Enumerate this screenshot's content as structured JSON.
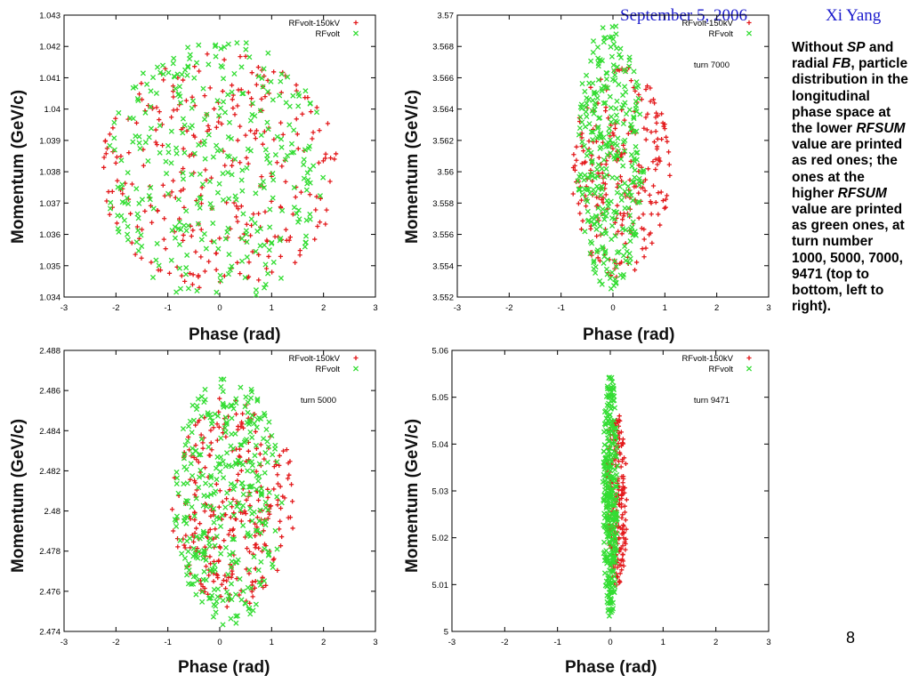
{
  "header": {
    "date": "September 5, 2006",
    "author": "Xi Yang"
  },
  "description": {
    "segments": [
      {
        "text": "Without ",
        "italic": false
      },
      {
        "text": "SP",
        "italic": true
      },
      {
        "text": " and radial ",
        "italic": false
      },
      {
        "text": "FB",
        "italic": true
      },
      {
        "text": ", particle distribution in the longitudinal phase space at the lower ",
        "italic": false
      },
      {
        "text": "RFSUM",
        "italic": true
      },
      {
        "text": " value are printed as red ones; the ones at the higher ",
        "italic": false
      },
      {
        "text": "RFSUM",
        "italic": true
      },
      {
        "text": " value are printed as green ones, at turn number 1000, 5000, 7000, 9471 (top to bottom, left to right).",
        "italic": false
      }
    ]
  },
  "page_number": "8",
  "colors": {
    "red_series": "#e31a1c",
    "green_series": "#33dd33",
    "header_text": "#1a1acc"
  },
  "chart_data": [
    {
      "type": "scatter",
      "title": "",
      "xlabel": "Phase (rad)",
      "ylabel": "Momentum (GeV/c)",
      "annotation": "",
      "xlim": [
        -3,
        3
      ],
      "ylim": [
        1.034,
        1.043
      ],
      "xticks": [
        "-3",
        "-2",
        "-1",
        "0",
        "1",
        "2",
        "3"
      ],
      "yticks": [
        "1.034",
        "1.035",
        "1.036",
        "1.037",
        "1.038",
        "1.039",
        "1.04",
        "1.041",
        "1.042",
        "1.043"
      ],
      "legend": {
        "position": "top-right"
      },
      "series": [
        {
          "name": "RFvolt-150kV",
          "marker": "+",
          "color": "#e31a1c",
          "distribution": {
            "center": [
              0.0,
              1.038
            ],
            "semi_axes": [
              2.3,
              0.0038
            ],
            "count": 300
          }
        },
        {
          "name": "RFvolt",
          "marker": "x",
          "color": "#33dd33",
          "distribution": {
            "center": [
              -0.05,
              1.038
            ],
            "semi_axes": [
              2.15,
              0.0043
            ],
            "count": 340
          }
        }
      ]
    },
    {
      "type": "scatter",
      "title": "",
      "xlabel": "Phase (rad)",
      "ylabel": "Momentum (GeV/c)",
      "annotation": "turn 7000",
      "xlim": [
        -3,
        3
      ],
      "ylim": [
        3.552,
        3.57
      ],
      "xticks": [
        "-3",
        "-2",
        "-1",
        "0",
        "1",
        "2",
        "3"
      ],
      "yticks": [
        "3.552",
        "3.554",
        "3.556",
        "3.558",
        "3.56",
        "3.562",
        "3.564",
        "3.566",
        "3.568",
        "3.57"
      ],
      "legend": {
        "position": "top-right"
      },
      "series": [
        {
          "name": "RFvolt-150kV",
          "marker": "+",
          "color": "#e31a1c",
          "distribution": {
            "center": [
              0.15,
              3.56
            ],
            "semi_axes": [
              0.95,
              0.0068
            ],
            "count": 260
          }
        },
        {
          "name": "RFvolt",
          "marker": "x",
          "color": "#33dd33",
          "distribution": {
            "center": [
              -0.05,
              3.561
            ],
            "semi_axes": [
              0.65,
              0.0085
            ],
            "count": 320
          }
        }
      ]
    },
    {
      "type": "scatter",
      "title": "",
      "xlabel": "Phase (rad)",
      "ylabel": "Momentum (GeV/c)",
      "annotation": "turn 5000",
      "xlim": [
        -3,
        3
      ],
      "ylim": [
        2.474,
        2.488
      ],
      "xticks": [
        "-3",
        "-2",
        "-1",
        "0",
        "1",
        "2",
        "3"
      ],
      "yticks": [
        "2.474",
        "2.476",
        "2.478",
        "2.48",
        "2.482",
        "2.484",
        "2.486",
        "2.488"
      ],
      "legend": {
        "position": "top-right"
      },
      "series": [
        {
          "name": "RFvolt-150kV",
          "marker": "+",
          "color": "#e31a1c",
          "distribution": {
            "center": [
              0.25,
              2.4805
            ],
            "semi_axes": [
              1.2,
              0.0053
            ],
            "count": 300
          }
        },
        {
          "name": "RFvolt",
          "marker": "x",
          "color": "#33dd33",
          "distribution": {
            "center": [
              0.15,
              2.4805
            ],
            "semi_axes": [
              1.05,
              0.0062
            ],
            "count": 340
          }
        }
      ]
    },
    {
      "type": "scatter",
      "title": "",
      "xlabel": "Phase (rad)",
      "ylabel": "Momentum (GeV/c)",
      "annotation": "turn 9471",
      "xlim": [
        -3,
        3
      ],
      "ylim": [
        5,
        5.06
      ],
      "xticks": [
        "-3",
        "-2",
        "-1",
        "0",
        "1",
        "2",
        "3"
      ],
      "yticks": [
        "5",
        "5.01",
        "5.02",
        "5.03",
        "5.04",
        "5.05",
        "5.06"
      ],
      "legend": {
        "position": "top-right"
      },
      "series": [
        {
          "name": "RFvolt-150kV",
          "marker": "+",
          "color": "#e31a1c",
          "distribution": {
            "center": [
              0.12,
              5.028
            ],
            "semi_axes": [
              0.2,
              0.019
            ],
            "count": 220
          }
        },
        {
          "name": "RFvolt",
          "marker": "x",
          "color": "#33dd33",
          "distribution": {
            "center": [
              0.0,
              5.029
            ],
            "semi_axes": [
              0.14,
              0.026
            ],
            "count": 320
          }
        }
      ]
    }
  ]
}
